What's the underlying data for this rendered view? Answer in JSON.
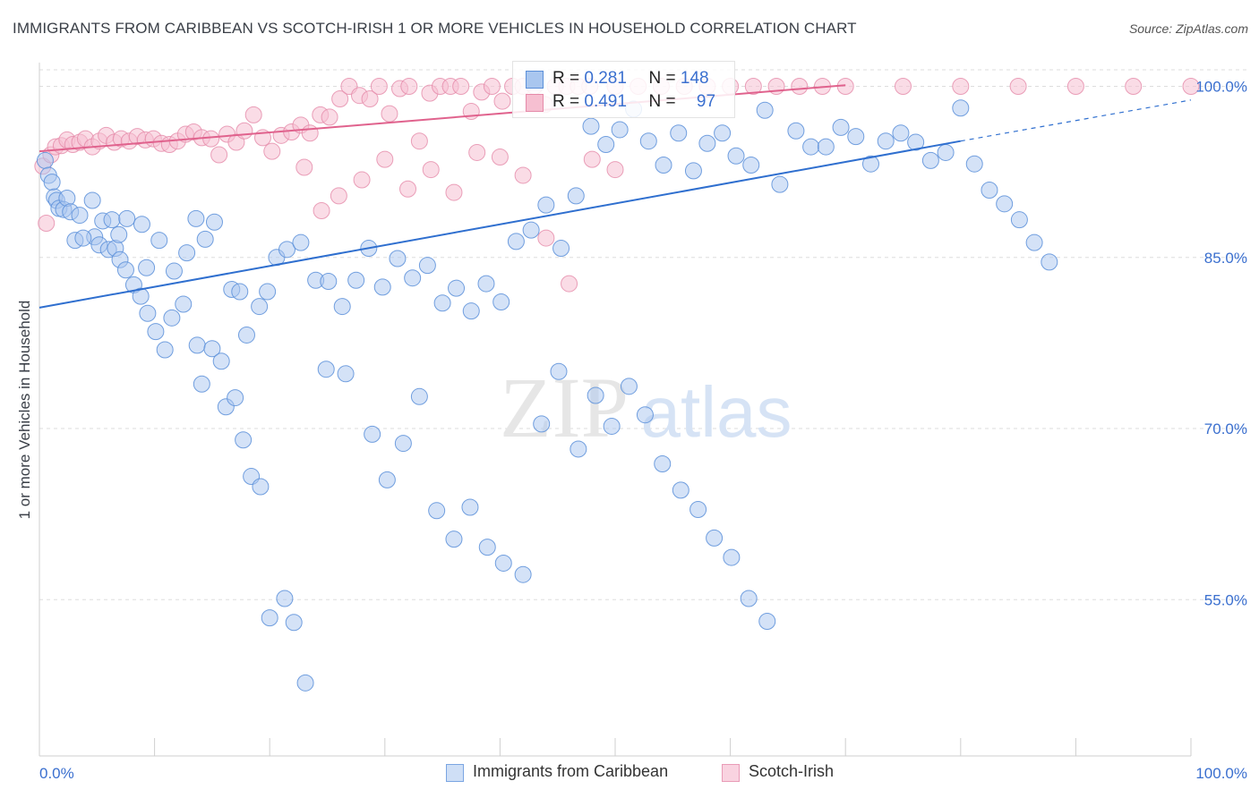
{
  "title": "IMMIGRANTS FROM CARIBBEAN VS SCOTCH-IRISH 1 OR MORE VEHICLES IN HOUSEHOLD CORRELATION CHART",
  "source": "Source: ZipAtlas.com",
  "watermark": {
    "zip": "ZIP",
    "atlas": "atlas"
  },
  "legend_top": {
    "r_label": "R =",
    "n_label": "N =",
    "rows": [
      {
        "r": "0.281",
        "n": "148"
      },
      {
        "r": "0.491",
        "n": "97"
      }
    ]
  },
  "colors": {
    "blue_fill": "#a9c6ef",
    "blue_stroke": "#5b8fd9",
    "blue_line": "#2f6fcf",
    "pink_fill": "#f6bfd1",
    "pink_stroke": "#e58aa9",
    "pink_line": "#e0628d",
    "tick_text": "#3a6fcf",
    "grid": "#dddddd"
  },
  "chart_data": {
    "type": "scatter",
    "title": "IMMIGRANTS FROM CARIBBEAN VS SCOTCH-IRISH 1 OR MORE VEHICLES IN HOUSEHOLD CORRELATION CHART",
    "xlabel": "",
    "ylabel": "1 or more Vehicles in Household",
    "xlim": [
      0,
      100
    ],
    "ylim": [
      40,
      102
    ],
    "x_tick_labels": [
      "0.0%",
      "100.0%"
    ],
    "y_ticks": [
      {
        "value": 100,
        "label": "100.0%"
      },
      {
        "value": 85,
        "label": "85.0%"
      },
      {
        "value": 70,
        "label": "70.0%"
      },
      {
        "value": 55,
        "label": "55.0%"
      }
    ],
    "grid": true,
    "legend": "bottom-center",
    "series": [
      {
        "name": "Immigrants from Caribbean",
        "color": "#a9c6ef",
        "R": 0.281,
        "N": 148,
        "trend": {
          "x0": 0,
          "y0": 80.6,
          "x1": 80,
          "y1": 95.2,
          "dash_to_x": 100,
          "dash_to_y": 98.8
        },
        "points": [
          [
            0.5,
            93.5
          ],
          [
            0.8,
            92.2
          ],
          [
            1.1,
            91.6
          ],
          [
            1.3,
            90.3
          ],
          [
            1.5,
            90.0
          ],
          [
            1.7,
            89.3
          ],
          [
            2.1,
            89.2
          ],
          [
            2.4,
            90.2
          ],
          [
            2.7,
            89.0
          ],
          [
            3.1,
            86.5
          ],
          [
            3.5,
            88.7
          ],
          [
            4.6,
            90.0
          ],
          [
            4.8,
            86.8
          ],
          [
            5.2,
            86.1
          ],
          [
            5.5,
            88.2
          ],
          [
            6.0,
            85.7
          ],
          [
            6.3,
            88.3
          ],
          [
            6.6,
            85.8
          ],
          [
            7.0,
            84.8
          ],
          [
            7.5,
            83.9
          ],
          [
            8.2,
            82.6
          ],
          [
            8.8,
            81.6
          ],
          [
            9.4,
            80.1
          ],
          [
            10.1,
            78.5
          ],
          [
            10.9,
            76.9
          ],
          [
            11.5,
            79.7
          ],
          [
            12.5,
            80.9
          ],
          [
            13.7,
            77.3
          ],
          [
            14.1,
            73.9
          ],
          [
            15.0,
            77.0
          ],
          [
            15.8,
            75.9
          ],
          [
            16.2,
            71.9
          ],
          [
            17.0,
            72.7
          ],
          [
            17.7,
            69.0
          ],
          [
            18.4,
            65.8
          ],
          [
            19.2,
            64.9
          ],
          [
            20.0,
            53.4
          ],
          [
            21.3,
            55.1
          ],
          [
            22.1,
            53.0
          ],
          [
            23.1,
            47.7
          ],
          [
            3.8,
            86.7
          ],
          [
            6.9,
            87.0
          ],
          [
            7.6,
            88.4
          ],
          [
            8.9,
            87.9
          ],
          [
            9.3,
            84.1
          ],
          [
            10.4,
            86.5
          ],
          [
            11.7,
            83.8
          ],
          [
            12.8,
            85.4
          ],
          [
            13.6,
            88.4
          ],
          [
            14.4,
            86.6
          ],
          [
            15.2,
            88.1
          ],
          [
            16.7,
            82.2
          ],
          [
            17.4,
            82.0
          ],
          [
            18.0,
            78.2
          ],
          [
            19.1,
            80.7
          ],
          [
            19.8,
            82.0
          ],
          [
            20.6,
            85.0
          ],
          [
            21.5,
            85.7
          ],
          [
            22.7,
            86.3
          ],
          [
            24.0,
            83.0
          ],
          [
            25.1,
            82.9
          ],
          [
            26.3,
            80.7
          ],
          [
            27.5,
            83.0
          ],
          [
            28.6,
            85.8
          ],
          [
            29.8,
            82.4
          ],
          [
            31.1,
            84.9
          ],
          [
            32.4,
            83.2
          ],
          [
            33.7,
            84.3
          ],
          [
            35.0,
            81.0
          ],
          [
            36.2,
            82.3
          ],
          [
            37.5,
            80.3
          ],
          [
            38.8,
            82.7
          ],
          [
            40.1,
            81.1
          ],
          [
            41.4,
            86.4
          ],
          [
            42.7,
            87.4
          ],
          [
            44.0,
            89.6
          ],
          [
            45.3,
            85.8
          ],
          [
            46.6,
            90.4
          ],
          [
            47.9,
            96.5
          ],
          [
            49.2,
            94.9
          ],
          [
            50.4,
            96.2
          ],
          [
            51.6,
            98.0
          ],
          [
            52.9,
            95.2
          ],
          [
            54.2,
            93.1
          ],
          [
            55.5,
            95.9
          ],
          [
            56.8,
            92.6
          ],
          [
            58.0,
            95.0
          ],
          [
            59.3,
            95.9
          ],
          [
            60.5,
            93.9
          ],
          [
            61.8,
            93.1
          ],
          [
            63.0,
            97.9
          ],
          [
            64.3,
            91.4
          ],
          [
            65.7,
            96.1
          ],
          [
            67.0,
            94.7
          ],
          [
            68.3,
            94.7
          ],
          [
            69.6,
            96.4
          ],
          [
            70.9,
            95.6
          ],
          [
            72.2,
            93.2
          ],
          [
            73.5,
            95.2
          ],
          [
            74.8,
            95.9
          ],
          [
            76.1,
            95.1
          ],
          [
            77.4,
            93.5
          ],
          [
            78.7,
            94.2
          ],
          [
            80.0,
            98.1
          ],
          [
            81.2,
            93.2
          ],
          [
            82.5,
            90.9
          ],
          [
            83.8,
            89.7
          ],
          [
            85.1,
            88.3
          ],
          [
            86.4,
            86.3
          ],
          [
            87.7,
            84.6
          ],
          [
            24.9,
            75.2
          ],
          [
            26.6,
            74.8
          ],
          [
            28.9,
            69.5
          ],
          [
            30.2,
            65.5
          ],
          [
            31.6,
            68.7
          ],
          [
            33.0,
            72.8
          ],
          [
            34.5,
            62.8
          ],
          [
            36.0,
            60.3
          ],
          [
            37.4,
            63.1
          ],
          [
            38.9,
            59.6
          ],
          [
            40.3,
            58.2
          ],
          [
            42.0,
            57.2
          ],
          [
            43.6,
            70.4
          ],
          [
            45.1,
            75.0
          ],
          [
            46.8,
            68.2
          ],
          [
            48.3,
            72.9
          ],
          [
            49.7,
            70.2
          ],
          [
            51.2,
            73.7
          ],
          [
            52.6,
            71.2
          ],
          [
            54.1,
            66.9
          ],
          [
            55.7,
            64.6
          ],
          [
            57.2,
            62.9
          ],
          [
            58.6,
            60.4
          ],
          [
            60.1,
            58.7
          ],
          [
            61.6,
            55.1
          ],
          [
            63.2,
            53.1
          ]
        ]
      },
      {
        "name": "Scotch-Irish",
        "color": "#f6bfd1",
        "R": 0.491,
        "N": 97,
        "trend": {
          "x0": 0,
          "y0": 94.3,
          "x1": 70,
          "y1": 100.1
        },
        "points": [
          [
            0.3,
            93.0
          ],
          [
            0.6,
            88.0
          ],
          [
            1.0,
            94.0
          ],
          [
            1.4,
            94.7
          ],
          [
            1.9,
            94.8
          ],
          [
            2.4,
            95.3
          ],
          [
            2.9,
            94.9
          ],
          [
            3.5,
            95.1
          ],
          [
            4.0,
            95.4
          ],
          [
            4.6,
            94.7
          ],
          [
            5.2,
            95.2
          ],
          [
            5.8,
            95.7
          ],
          [
            6.5,
            95.1
          ],
          [
            7.1,
            95.4
          ],
          [
            7.8,
            95.2
          ],
          [
            8.5,
            95.6
          ],
          [
            9.2,
            95.3
          ],
          [
            9.9,
            95.4
          ],
          [
            10.6,
            95.0
          ],
          [
            11.3,
            94.9
          ],
          [
            12.0,
            95.2
          ],
          [
            12.7,
            95.8
          ],
          [
            13.4,
            96.0
          ],
          [
            14.1,
            95.5
          ],
          [
            14.9,
            95.4
          ],
          [
            15.6,
            94.0
          ],
          [
            16.3,
            95.8
          ],
          [
            17.1,
            95.1
          ],
          [
            17.8,
            96.1
          ],
          [
            18.6,
            97.5
          ],
          [
            19.4,
            95.5
          ],
          [
            20.2,
            94.3
          ],
          [
            21.0,
            95.7
          ],
          [
            21.9,
            96.0
          ],
          [
            22.7,
            96.6
          ],
          [
            23.5,
            95.9
          ],
          [
            24.4,
            97.5
          ],
          [
            25.2,
            97.3
          ],
          [
            26.1,
            98.9
          ],
          [
            26.9,
            100.0
          ],
          [
            27.8,
            99.2
          ],
          [
            28.7,
            98.9
          ],
          [
            29.5,
            100.0
          ],
          [
            30.4,
            97.6
          ],
          [
            31.3,
            99.8
          ],
          [
            32.1,
            100.0
          ],
          [
            33.0,
            95.2
          ],
          [
            33.9,
            99.4
          ],
          [
            34.8,
            100.0
          ],
          [
            35.7,
            100.0
          ],
          [
            36.6,
            100.0
          ],
          [
            37.5,
            97.8
          ],
          [
            38.4,
            99.5
          ],
          [
            39.3,
            100.0
          ],
          [
            40.2,
            98.7
          ],
          [
            41.1,
            100.0
          ],
          [
            42.0,
            100.0
          ],
          [
            43.0,
            100.0
          ],
          [
            43.9,
            98.4
          ],
          [
            44.8,
            100.0
          ],
          [
            45.8,
            100.0
          ],
          [
            46.8,
            100.0
          ],
          [
            47.8,
            100.0
          ],
          [
            50.0,
            100.0
          ],
          [
            52.0,
            100.0
          ],
          [
            54.0,
            100.0
          ],
          [
            56.0,
            100.0
          ],
          [
            58.0,
            100.0
          ],
          [
            60.0,
            100.0
          ],
          [
            62.0,
            100.0
          ],
          [
            64.0,
            100.0
          ],
          [
            66.0,
            100.0
          ],
          [
            68.0,
            100.0
          ],
          [
            70.0,
            100.0
          ],
          [
            75.0,
            100.0
          ],
          [
            80.0,
            100.0
          ],
          [
            85.0,
            100.0
          ],
          [
            90.0,
            100.0
          ],
          [
            95.0,
            100.0
          ],
          [
            100.0,
            100.0
          ],
          [
            23.0,
            92.9
          ],
          [
            24.5,
            89.1
          ],
          [
            26.0,
            90.4
          ],
          [
            28.0,
            91.8
          ],
          [
            30.0,
            93.6
          ],
          [
            32.0,
            91.0
          ],
          [
            34.0,
            92.7
          ],
          [
            36.0,
            90.7
          ],
          [
            38.0,
            94.2
          ],
          [
            40.0,
            93.8
          ],
          [
            42.0,
            92.2
          ],
          [
            44.0,
            86.7
          ],
          [
            46.0,
            82.7
          ],
          [
            48.0,
            93.6
          ],
          [
            50.0,
            92.7
          ]
        ]
      }
    ]
  },
  "legend_bottom": [
    {
      "label": "Immigrants from Caribbean"
    },
    {
      "label": "Scotch-Irish"
    }
  ]
}
